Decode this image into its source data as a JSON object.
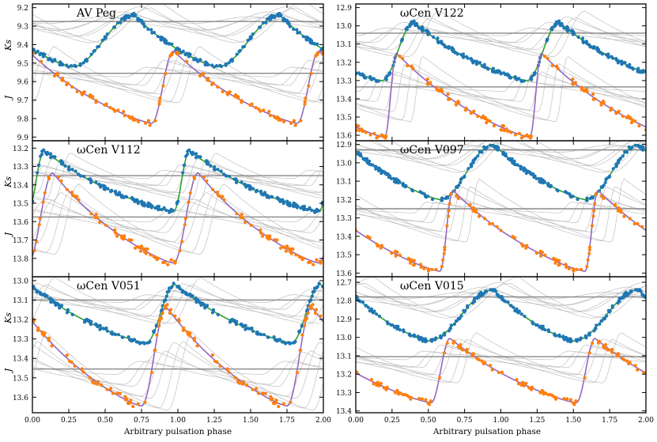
{
  "figure": {
    "xlabel": "Arbitrary pulsation phase",
    "colors": {
      "ks_points": "#1f77b4",
      "j_points": "#ff7f0e",
      "ks_fit": "#2ca02c",
      "j_fit": "#9467bd",
      "templates": "#b0b0b0"
    }
  },
  "chart_data": [
    {
      "type": "scatter",
      "title": "AV Peg",
      "x_ticks": [
        "0.00",
        "0.25",
        "0.50",
        "0.75",
        "1.00",
        "1.25",
        "1.50",
        "1.75",
        "2.00"
      ],
      "y_ticks": [
        "9.2",
        "9.3",
        "9.4",
        "9.5",
        "9.6",
        "9.7",
        "9.8",
        "9.9"
      ],
      "ylim": [
        9.92,
        9.18
      ],
      "ylabel_ks": "Ks",
      "ylabel_j": "J",
      "series": [
        {
          "name": "Ks",
          "mean": 9.38,
          "amp": 0.28,
          "phase_min": 0.27,
          "phase_max": 0.7
        },
        {
          "name": "J",
          "mean": 9.63,
          "amp": 0.39,
          "phase_min": 0.82,
          "phase_max": 0.97
        }
      ],
      "ref_lines": [
        9.275,
        9.555
      ]
    },
    {
      "type": "scatter",
      "title": "ωCen V112",
      "x_ticks": [
        "0.00",
        "0.25",
        "0.50",
        "0.75",
        "1.00",
        "1.25",
        "1.50",
        "1.75",
        "2.00"
      ],
      "y_ticks": [
        "13.2",
        "13.3",
        "13.4",
        "13.5",
        "13.6",
        "13.7",
        "13.8"
      ],
      "ylim": [
        13.9,
        13.16
      ],
      "ylabel_ks": "Ks",
      "ylabel_j": "J",
      "series": [
        {
          "name": "Ks",
          "mean": 13.38,
          "amp": 0.33,
          "phase_min": 0.97,
          "phase_max": 0.08
        },
        {
          "name": "J",
          "mean": 13.58,
          "amp": 0.49,
          "phase_min": 0.97,
          "phase_max": 0.14
        }
      ],
      "ref_lines": [
        13.35,
        13.575
      ]
    },
    {
      "type": "scatter",
      "title": "ωCen V051",
      "x_ticks": [
        "0.00",
        "0.25",
        "0.50",
        "0.75",
        "1.00",
        "1.25",
        "1.50",
        "1.75",
        "2.00"
      ],
      "y_ticks": [
        "13.0",
        "13.1",
        "13.2",
        "13.3",
        "13.4",
        "13.5",
        "13.6"
      ],
      "ylim": [
        13.68,
        12.98
      ],
      "ylabel_ks": "Ks",
      "ylabel_j": "J",
      "series": [
        {
          "name": "Ks",
          "mean": 13.17,
          "amp": 0.3,
          "phase_min": 0.78,
          "phase_max": 0.98
        },
        {
          "name": "J",
          "mean": 13.39,
          "amp": 0.51,
          "phase_min": 0.75,
          "phase_max": 0.92
        }
      ],
      "ref_lines": [
        13.1,
        13.455
      ]
    },
    {
      "type": "scatter",
      "title": "ωCen V122",
      "x_ticks": [
        "0.00",
        "0.25",
        "0.50",
        "0.75",
        "1.00",
        "1.25",
        "1.50",
        "1.75",
        "2.00"
      ],
      "y_ticks": [
        "12.9",
        "13.0",
        "13.1",
        "13.2",
        "13.3",
        "13.4",
        "13.5",
        "13.6"
      ],
      "ylim": [
        13.63,
        12.88
      ],
      "ylabel_ks": "",
      "ylabel_j": "",
      "series": [
        {
          "name": "Ks",
          "mean": 13.14,
          "amp": 0.32,
          "phase_min": 0.18,
          "phase_max": 0.4
        },
        {
          "name": "J",
          "mean": 13.38,
          "amp": 0.46,
          "phase_min": 0.2,
          "phase_max": 0.28
        }
      ],
      "ref_lines": [
        13.04,
        13.335
      ]
    },
    {
      "type": "scatter",
      "title": "ωCen V097",
      "x_ticks": [
        "0.00",
        "0.25",
        "0.50",
        "0.75",
        "1.00",
        "1.25",
        "1.50",
        "1.75",
        "2.00"
      ],
      "y_ticks": [
        "12.9",
        "13.0",
        "13.1",
        "13.2",
        "13.3",
        "13.4",
        "13.5",
        "13.6"
      ],
      "ylim": [
        13.62,
        12.88
      ],
      "ylabel_ks": "",
      "ylabel_j": "",
      "series": [
        {
          "name": "Ks",
          "mean": 13.05,
          "amp": 0.3,
          "phase_min": 0.58,
          "phase_max": 0.95
        },
        {
          "name": "J",
          "mean": 13.37,
          "amp": 0.44,
          "phase_min": 0.58,
          "phase_max": 0.67
        }
      ],
      "ref_lines": [
        12.93,
        13.25
      ]
    },
    {
      "type": "scatter",
      "title": "ωCen V015",
      "x_ticks": [
        "0.00",
        "0.25",
        "0.50",
        "0.75",
        "1.00",
        "1.25",
        "1.50",
        "1.75",
        "2.00"
      ],
      "y_ticks": [
        "12.7",
        "12.8",
        "12.9",
        "13.0",
        "13.1",
        "13.2",
        "13.3",
        "13.4"
      ],
      "ylim": [
        13.41,
        12.67
      ],
      "ylabel_ks": "",
      "ylabel_j": "",
      "series": [
        {
          "name": "Ks",
          "mean": 12.88,
          "amp": 0.28,
          "phase_min": 0.5,
          "phase_max": 0.95
        },
        {
          "name": "J",
          "mean": 13.18,
          "amp": 0.35,
          "phase_min": 0.52,
          "phase_max": 0.65
        }
      ],
      "ref_lines": [
        12.78,
        13.105
      ]
    }
  ]
}
